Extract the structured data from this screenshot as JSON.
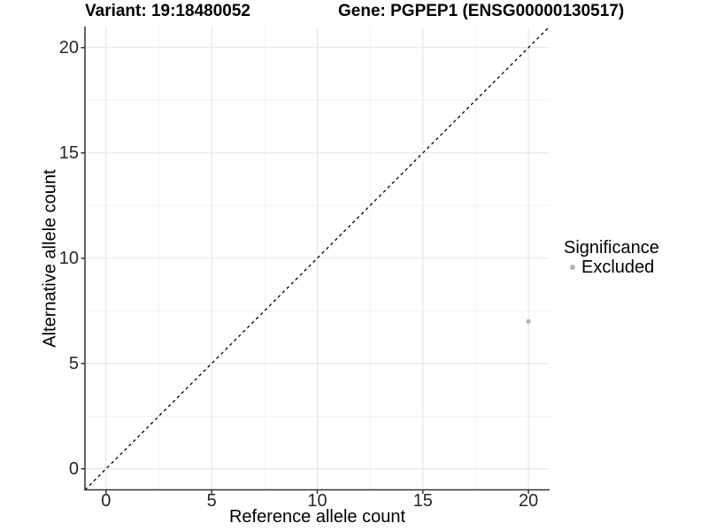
{
  "chart_data": {
    "type": "scatter",
    "titles": {
      "variant": "Variant: 19:18480052",
      "gene": "Gene: PGPEP1 (ENSG00000130517)"
    },
    "xlabel": "Reference allele count",
    "ylabel": "Alternative allele count",
    "xlim": [
      -1,
      21
    ],
    "ylim": [
      -1,
      21
    ],
    "x_ticks": [
      0,
      5,
      10,
      15,
      20
    ],
    "y_ticks": [
      0,
      5,
      10,
      15,
      20
    ],
    "minor_breaks": [
      2.5,
      7.5,
      12.5,
      17.5
    ],
    "grid": "major+minor",
    "identity_line": {
      "slope": 1,
      "intercept": 0,
      "style": "dashed",
      "color": "#000000"
    },
    "series": [
      {
        "name": "Excluded",
        "marker": "circle",
        "color": "#b3b3b3",
        "points": [
          {
            "x": 20,
            "y": 7
          }
        ]
      }
    ],
    "legend": {
      "title": "Significance",
      "position": "right",
      "items": [
        {
          "label": "Excluded",
          "marker": "circle",
          "color": "#b3b3b3"
        }
      ]
    }
  },
  "colors": {
    "background": "#ffffff",
    "axis_line": "#333333",
    "tick_mark": "#333333",
    "grid_major": "#e3e3e3",
    "grid_minor": "#f1f1f1",
    "tick_text": "#262626",
    "point": "#b3b3b3",
    "identity_line": "#000000"
  }
}
